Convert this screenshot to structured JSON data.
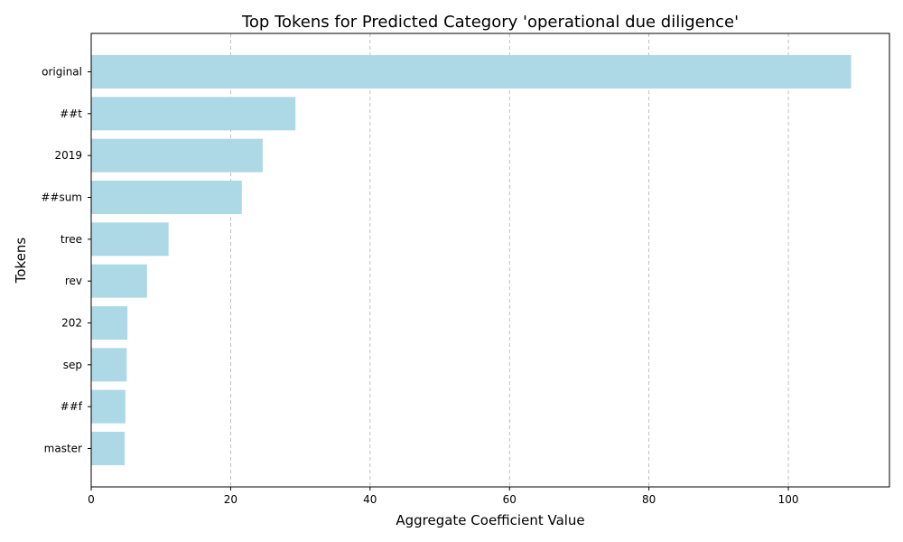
{
  "chart_data": {
    "type": "bar",
    "orientation": "horizontal",
    "title": "Top Tokens for Predicted Category 'operational due diligence'",
    "xlabel": "Aggregate Coefficient Value",
    "ylabel": "Tokens",
    "categories": [
      "original",
      "##t",
      "2019",
      "##sum",
      "tree",
      "rev",
      "202",
      "sep",
      "##f",
      "master"
    ],
    "values": [
      109.0,
      29.3,
      24.6,
      21.6,
      11.1,
      8.0,
      5.2,
      5.1,
      4.9,
      4.8
    ],
    "xlim": [
      0,
      114.5
    ],
    "xticks": [
      0,
      20,
      40,
      60,
      80,
      100
    ],
    "grid": "x-axis dashed",
    "bar_color": "#add8e6"
  }
}
